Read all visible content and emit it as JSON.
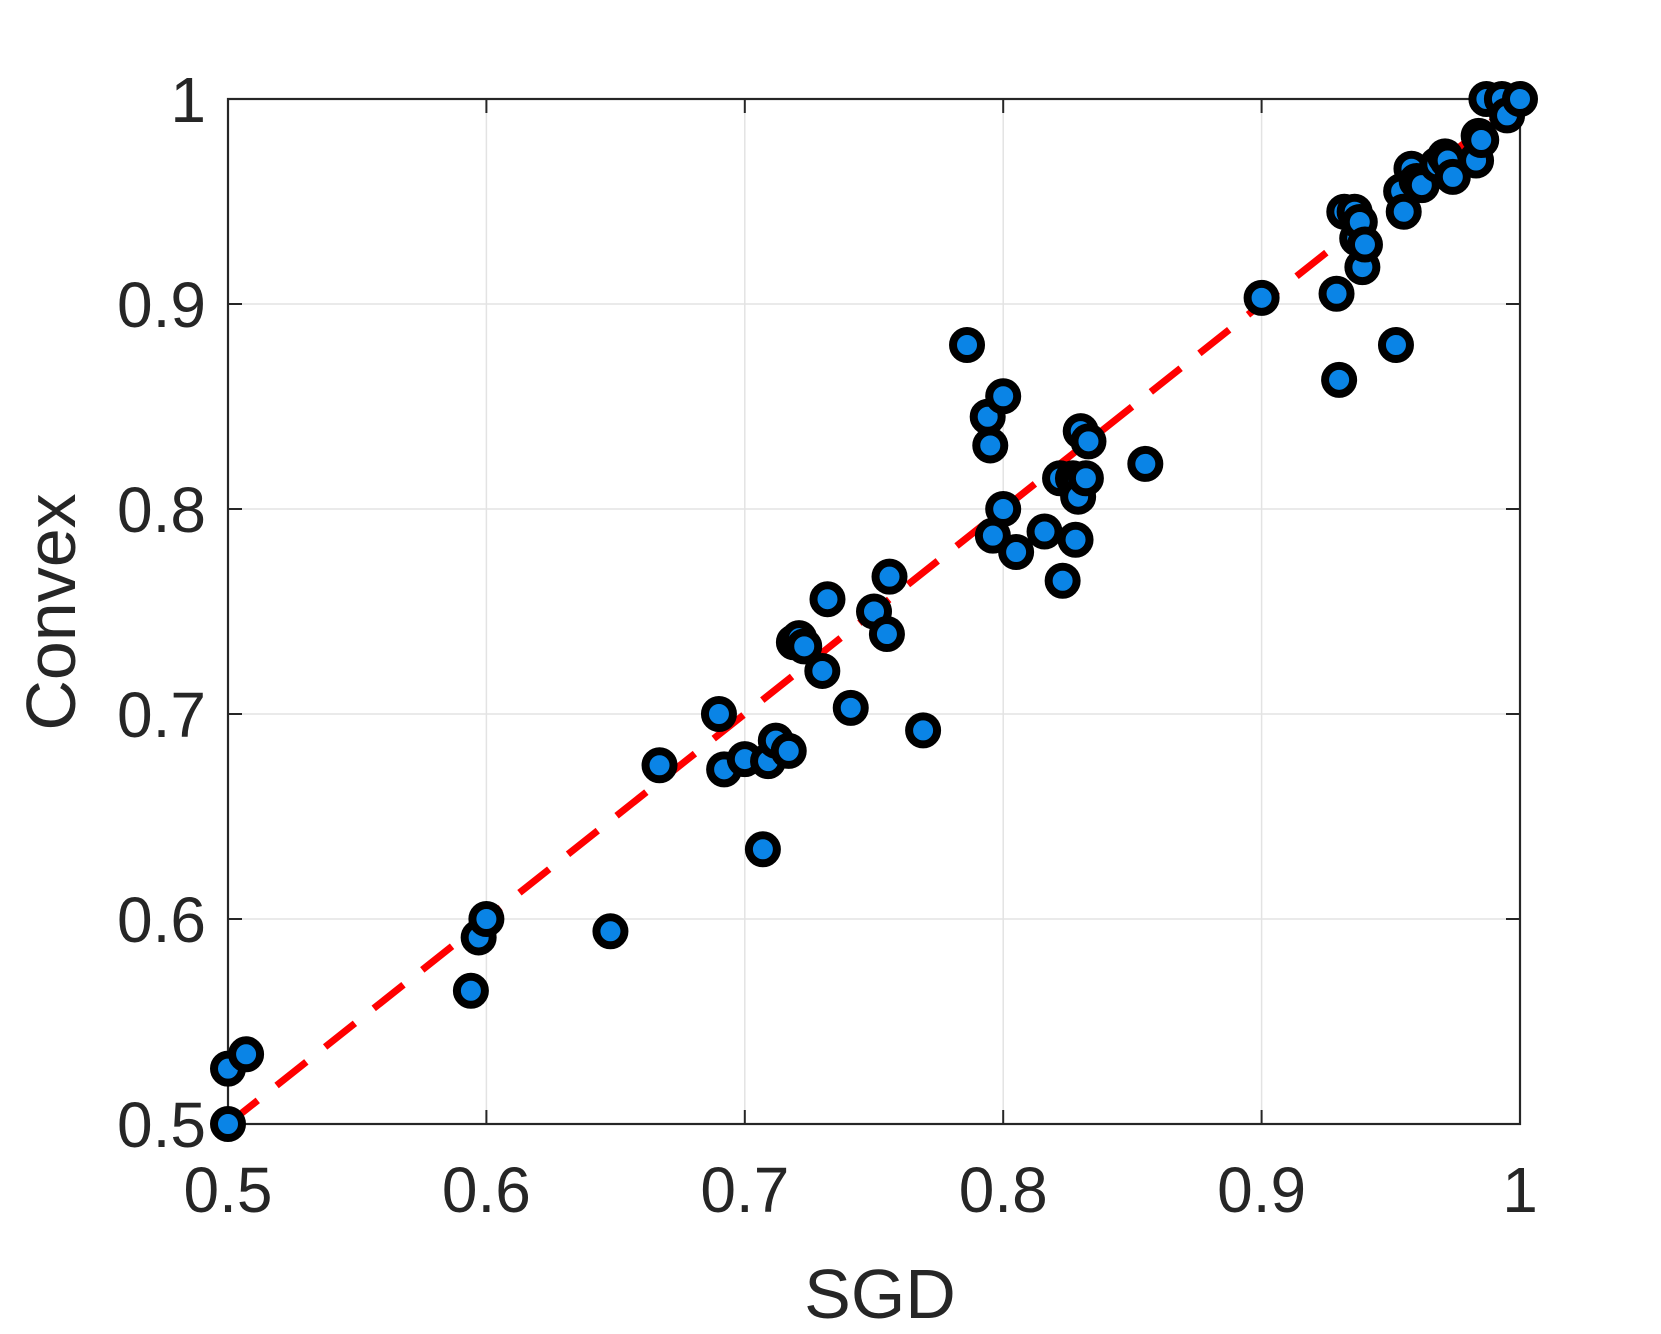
{
  "chart_data": {
    "type": "scatter",
    "xlabel": "SGD",
    "ylabel": "Convex",
    "xlim": [
      0.5,
      1
    ],
    "ylim": [
      0.5,
      1
    ],
    "xticks": [
      0.5,
      0.6,
      0.7,
      0.8,
      0.9,
      1
    ],
    "yticks": [
      0.5,
      0.6,
      0.7,
      0.8,
      0.9,
      1
    ],
    "xtick_labels": [
      "0.5",
      "0.6",
      "0.7",
      "0.8",
      "0.9",
      "1"
    ],
    "ytick_labels": [
      "0.5",
      "0.6",
      "0.7",
      "0.8",
      "0.9",
      "1"
    ],
    "grid": true,
    "colors": {
      "marker_fill": "#0a84e6",
      "marker_edge": "#000000",
      "reference_line": "#ff0000",
      "grid": "#e3e3e3",
      "axes": "#262626"
    },
    "reference_line": {
      "x": [
        0.5,
        1
      ],
      "y": [
        0.5,
        1
      ],
      "style": "dashed"
    },
    "series": [
      {
        "x": [
          0.5,
          0.5,
          0.507,
          0.594,
          0.597,
          0.6,
          0.648,
          0.667,
          0.69,
          0.692,
          0.7,
          0.707,
          0.709,
          0.712,
          0.717,
          0.719,
          0.721,
          0.723,
          0.73,
          0.732,
          0.741,
          0.75,
          0.755,
          0.756,
          0.769,
          0.786,
          0.794,
          0.795,
          0.796,
          0.8,
          0.8,
          0.805,
          0.816,
          0.822,
          0.823,
          0.827,
          0.828,
          0.829,
          0.829,
          0.83,
          0.832,
          0.833,
          0.855,
          0.9,
          0.929,
          0.93,
          0.932,
          0.936,
          0.937,
          0.938,
          0.939,
          0.94,
          0.952,
          0.954,
          0.955,
          0.958,
          0.96,
          0.962,
          0.968,
          0.971,
          0.972,
          0.974,
          0.983,
          0.984,
          0.985,
          0.987,
          0.993,
          0.995,
          1.0
        ],
        "y": [
          0.527,
          0.5,
          0.534,
          0.565,
          0.591,
          0.6,
          0.594,
          0.675,
          0.7,
          0.673,
          0.678,
          0.634,
          0.677,
          0.687,
          0.682,
          0.735,
          0.737,
          0.733,
          0.721,
          0.756,
          0.703,
          0.75,
          0.739,
          0.767,
          0.692,
          0.88,
          0.845,
          0.831,
          0.787,
          0.8,
          0.855,
          0.779,
          0.789,
          0.815,
          0.765,
          0.815,
          0.785,
          0.814,
          0.806,
          0.838,
          0.815,
          0.833,
          0.822,
          0.903,
          0.905,
          0.863,
          0.945,
          0.945,
          0.932,
          0.94,
          0.918,
          0.929,
          0.88,
          0.955,
          0.945,
          0.966,
          0.96,
          0.958,
          0.968,
          0.972,
          0.97,
          0.962,
          0.97,
          0.982,
          0.98,
          1.0,
          1.0,
          0.992,
          1.0
        ]
      }
    ]
  }
}
